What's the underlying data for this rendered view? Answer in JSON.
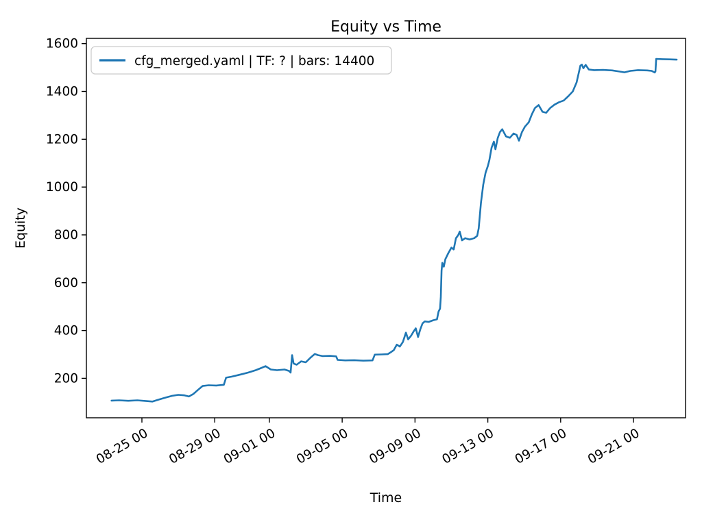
{
  "chart_data": {
    "type": "line",
    "title": "Equity vs Time",
    "xlabel": "Time",
    "ylabel": "Equity",
    "grid": false,
    "legend_position": "upper left",
    "x_tick_labels": [
      "08-25 00",
      "08-29 00",
      "09-01 00",
      "09-05 00",
      "09-09 00",
      "09-13 00",
      "09-17 00",
      "09-21 00"
    ],
    "x_tick_days": [
      25,
      29,
      32,
      36,
      40,
      44,
      48,
      52
    ],
    "xlim_days_since_aug1": [
      21.95,
      54.86
    ],
    "y_ticks": [
      200,
      400,
      600,
      800,
      1000,
      1200,
      1400,
      1600
    ],
    "ylim": [
      35,
      1622
    ],
    "series": [
      {
        "name": "cfg_merged.yaml | TF: ? | bars: 14400",
        "color": "#1f77b4",
        "points": [
          [
            "08-23 08",
            107
          ],
          [
            "08-23 18",
            108
          ],
          [
            "08-24 06",
            106
          ],
          [
            "08-24 18",
            108
          ],
          [
            "08-25 06",
            105
          ],
          [
            "08-25 14",
            103
          ],
          [
            "08-25 22",
            111
          ],
          [
            "08-26 08",
            120
          ],
          [
            "08-26 16",
            127
          ],
          [
            "08-27 00",
            131
          ],
          [
            "08-27 08",
            129
          ],
          [
            "08-27 14",
            124
          ],
          [
            "08-27 20",
            135
          ],
          [
            "08-28 02",
            152
          ],
          [
            "08-28 08",
            168
          ],
          [
            "08-28 16",
            171
          ],
          [
            "08-29 02",
            170
          ],
          [
            "08-29 12",
            173
          ],
          [
            "08-29 15",
            203
          ],
          [
            "08-29 22",
            207
          ],
          [
            "08-30 10",
            216
          ],
          [
            "08-30 20",
            224
          ],
          [
            "08-31 06",
            234
          ],
          [
            "08-31 14",
            244
          ],
          [
            "08-31 19",
            251
          ],
          [
            "09-01 02",
            237
          ],
          [
            "09-01 10",
            234
          ],
          [
            "09-01 20",
            237
          ],
          [
            "09-02 02",
            231
          ],
          [
            "09-02 04",
            224
          ],
          [
            "09-02 06",
            297
          ],
          [
            "09-02 08",
            262
          ],
          [
            "09-02 12",
            257
          ],
          [
            "09-02 18",
            271
          ],
          [
            "09-03 00",
            267
          ],
          [
            "09-03 06",
            286
          ],
          [
            "09-03 12",
            302
          ],
          [
            "09-03 16",
            297
          ],
          [
            "09-03 22",
            293
          ],
          [
            "09-04 08",
            294
          ],
          [
            "09-04 16",
            292
          ],
          [
            "09-04 18",
            277
          ],
          [
            "09-05 04",
            275
          ],
          [
            "09-05 16",
            276
          ],
          [
            "09-06 04",
            274
          ],
          [
            "09-06 16",
            275
          ],
          [
            "09-06 19",
            299
          ],
          [
            "09-07 04",
            300
          ],
          [
            "09-07 12",
            301
          ],
          [
            "09-07 16",
            309
          ],
          [
            "09-07 20",
            318
          ],
          [
            "09-08 00",
            341
          ],
          [
            "09-08 04",
            333
          ],
          [
            "09-08 08",
            352
          ],
          [
            "09-08 12",
            391
          ],
          [
            "09-08 15",
            363
          ],
          [
            "09-08 19",
            379
          ],
          [
            "09-08 22",
            395
          ],
          [
            "09-09 01",
            409
          ],
          [
            "09-09 04",
            373
          ],
          [
            "09-09 07",
            405
          ],
          [
            "09-09 10",
            430
          ],
          [
            "09-09 13",
            438
          ],
          [
            "09-09 18",
            436
          ],
          [
            "09-10 00",
            443
          ],
          [
            "09-10 05",
            447
          ],
          [
            "09-10 07",
            479
          ],
          [
            "09-10 09",
            492
          ],
          [
            "09-10 10",
            540
          ],
          [
            "09-10 11",
            650
          ],
          [
            "09-10 12",
            683
          ],
          [
            "09-10 14",
            667
          ],
          [
            "09-10 16",
            698
          ],
          [
            "09-10 20",
            724
          ],
          [
            "09-11 00",
            747
          ],
          [
            "09-11 03",
            739
          ],
          [
            "09-11 06",
            786
          ],
          [
            "09-11 09",
            799
          ],
          [
            "09-11 11",
            814
          ],
          [
            "09-11 14",
            777
          ],
          [
            "09-11 18",
            786
          ],
          [
            "09-12 00",
            781
          ],
          [
            "09-12 06",
            786
          ],
          [
            "09-12 10",
            796
          ],
          [
            "09-12 12",
            828
          ],
          [
            "09-12 15",
            935
          ],
          [
            "09-12 18",
            1010
          ],
          [
            "09-12 21",
            1060
          ],
          [
            "09-13 00",
            1088
          ],
          [
            "09-13 02",
            1112
          ],
          [
            "09-13 05",
            1165
          ],
          [
            "09-13 08",
            1190
          ],
          [
            "09-13 10",
            1158
          ],
          [
            "09-13 13",
            1205
          ],
          [
            "09-13 16",
            1230
          ],
          [
            "09-13 19",
            1242
          ],
          [
            "09-14 00",
            1212
          ],
          [
            "09-14 05",
            1206
          ],
          [
            "09-14 10",
            1224
          ],
          [
            "09-14 14",
            1218
          ],
          [
            "09-14 17",
            1194
          ],
          [
            "09-14 21",
            1230
          ],
          [
            "09-15 01",
            1253
          ],
          [
            "09-15 06",
            1271
          ],
          [
            "09-15 10",
            1304
          ],
          [
            "09-15 14",
            1330
          ],
          [
            "09-15 19",
            1343
          ],
          [
            "09-16 00",
            1315
          ],
          [
            "09-16 05",
            1311
          ],
          [
            "09-16 10",
            1330
          ],
          [
            "09-16 16",
            1345
          ],
          [
            "09-16 22",
            1355
          ],
          [
            "09-17 04",
            1362
          ],
          [
            "09-17 10",
            1380
          ],
          [
            "09-17 16",
            1400
          ],
          [
            "09-17 21",
            1438
          ],
          [
            "09-18 00",
            1480
          ],
          [
            "09-18 02",
            1508
          ],
          [
            "09-18 04",
            1512
          ],
          [
            "09-18 06",
            1497
          ],
          [
            "09-18 09",
            1511
          ],
          [
            "09-18 13",
            1492
          ],
          [
            "09-18 20",
            1489
          ],
          [
            "09-19 08",
            1490
          ],
          [
            "09-19 20",
            1488
          ],
          [
            "09-20 06",
            1483
          ],
          [
            "09-20 12",
            1480
          ],
          [
            "09-20 20",
            1486
          ],
          [
            "09-21 06",
            1489
          ],
          [
            "09-21 18",
            1488
          ],
          [
            "09-22 00",
            1486
          ],
          [
            "09-22 04",
            1479
          ],
          [
            "09-22 05",
            1484
          ],
          [
            "09-22 06",
            1536
          ],
          [
            "09-22 14",
            1535
          ],
          [
            "09-23 00",
            1534
          ],
          [
            "09-23 09",
            1533
          ]
        ]
      }
    ]
  },
  "colors": {
    "line": "#1f77b4",
    "axis": "#000000",
    "background": "#ffffff",
    "legend_border": "#cccccc"
  }
}
